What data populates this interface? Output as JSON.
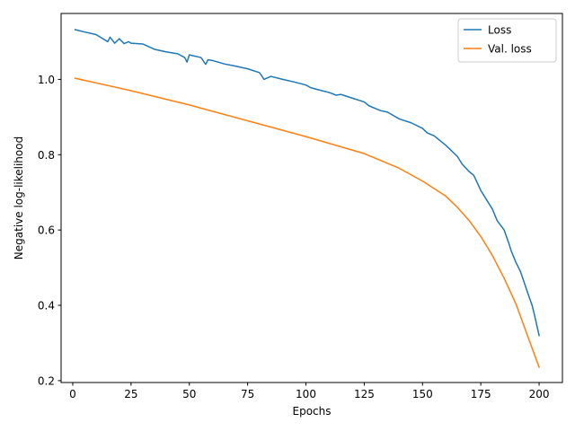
{
  "chart_data": {
    "type": "line",
    "title": "",
    "xlabel": "Epochs",
    "ylabel": "Negative log-likelihood",
    "xlim": [
      -5,
      210
    ],
    "ylim": [
      0.195,
      1.175
    ],
    "xticks": [
      0,
      25,
      50,
      75,
      100,
      125,
      150,
      175,
      200
    ],
    "yticks": [
      0.2,
      0.4,
      0.6,
      0.8,
      1.0
    ],
    "ytick_labels": [
      "0.2",
      "0.4",
      "0.6",
      "0.8",
      "1.0"
    ],
    "grid": false,
    "legend_position": "top-right",
    "series": [
      {
        "name": "Loss",
        "color": "#1f77b4",
        "x": [
          1,
          5,
          10,
          15,
          16,
          18,
          20,
          22,
          24,
          25,
          30,
          35,
          40,
          45,
          48,
          49,
          50,
          55,
          57,
          58,
          60,
          65,
          70,
          75,
          80,
          81,
          82,
          85,
          90,
          95,
          100,
          102,
          105,
          110,
          113,
          115,
          120,
          125,
          127,
          130,
          132,
          135,
          140,
          145,
          150,
          152,
          155,
          160,
          165,
          167,
          170,
          172,
          175,
          178,
          180,
          182,
          185,
          187,
          188,
          190,
          192,
          195,
          197,
          198,
          200
        ],
        "y": [
          1.132,
          1.126,
          1.119,
          1.1,
          1.112,
          1.096,
          1.108,
          1.095,
          1.1,
          1.096,
          1.094,
          1.08,
          1.073,
          1.068,
          1.058,
          1.046,
          1.065,
          1.058,
          1.04,
          1.052,
          1.05,
          1.041,
          1.035,
          1.028,
          1.018,
          1.01,
          1.0,
          1.008,
          1.0,
          0.993,
          0.985,
          0.978,
          0.973,
          0.965,
          0.958,
          0.96,
          0.95,
          0.94,
          0.93,
          0.922,
          0.917,
          0.913,
          0.895,
          0.885,
          0.87,
          0.858,
          0.85,
          0.825,
          0.795,
          0.775,
          0.755,
          0.745,
          0.705,
          0.675,
          0.655,
          0.625,
          0.6,
          0.565,
          0.545,
          0.515,
          0.49,
          0.435,
          0.4,
          0.375,
          0.32
        ]
      },
      {
        "name": "Val. loss",
        "color": "#ff7f0e",
        "x": [
          1,
          25,
          50,
          75,
          100,
          125,
          140,
          150,
          160,
          165,
          170,
          175,
          180,
          185,
          190,
          195,
          200
        ],
        "y": [
          1.003,
          0.97,
          0.932,
          0.89,
          0.848,
          0.803,
          0.764,
          0.73,
          0.69,
          0.66,
          0.625,
          0.583,
          0.532,
          0.472,
          0.405,
          0.32,
          0.236
        ]
      }
    ]
  }
}
